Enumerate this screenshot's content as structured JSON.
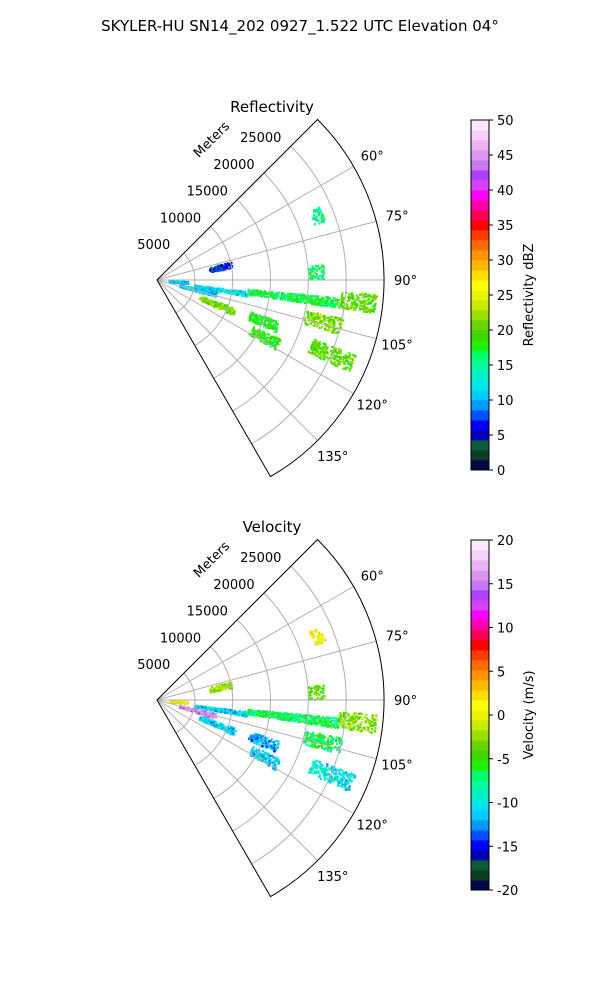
{
  "figure": {
    "title": "SKYLER-HU  SN14_202  0927_1.522 UTC Elevation 04°"
  },
  "chart_data": [
    {
      "type": "heatmap",
      "projection": "polar-sector",
      "title": "Reflectivity",
      "radial_label": "Meters",
      "theta_range_deg": [
        45,
        150
      ],
      "r_range": [
        0,
        30000
      ],
      "r_ticks": [
        5000,
        10000,
        15000,
        20000,
        25000
      ],
      "theta_ticks": [
        "60°",
        "75°",
        "90°",
        "105°",
        "120°",
        "135°"
      ],
      "grid": true,
      "colorbar": {
        "label": "Reflectivity dBZ",
        "min": 0,
        "max": 50,
        "ticks": [
          0,
          5,
          10,
          15,
          20,
          25,
          30,
          35,
          40,
          45,
          50
        ],
        "colors": [
          "#06084a",
          "#0a3f26",
          "#0b5a3c",
          "#0000b4",
          "#0000ff",
          "#0050ff",
          "#009bff",
          "#00ccff",
          "#00e6e6",
          "#00f2c8",
          "#00ff9c",
          "#00ff66",
          "#22f000",
          "#40d400",
          "#6ad400",
          "#9bde00",
          "#c8ec00",
          "#eaf500",
          "#ffff00",
          "#ffdd00",
          "#ffb800",
          "#ff9200",
          "#ff6a00",
          "#ff3c00",
          "#ff0000",
          "#ff0050",
          "#ff00aa",
          "#ff00ff",
          "#d640ff",
          "#b040ff",
          "#c878f0",
          "#dc96f0",
          "#eab4f5",
          "#f4d2fa",
          "#fbe8fc"
        ]
      },
      "echo_regions": [
        {
          "theta": 94,
          "r": [
            1500,
            4000
          ],
          "value": 10
        },
        {
          "theta": 98.5,
          "r": [
            5000,
            12000
          ],
          "value": 12
        },
        {
          "theta": 97,
          "r": [
            12000,
            24000
          ],
          "value": 17
        },
        {
          "theta": 96,
          "r": [
            24000,
            29000
          ],
          "value": 20
        },
        {
          "theta": 103,
          "r": [
            3000,
            8000
          ],
          "value": 11
        },
        {
          "theta": 112,
          "r": [
            6000,
            11000
          ],
          "value": 21
        },
        {
          "theta": 104,
          "r": [
            20000,
            25000
          ],
          "value": 21
        },
        {
          "theta": 111,
          "r": [
            13000,
            17000
          ],
          "value": 18
        },
        {
          "theta": 118,
          "r": [
            14000,
            18000
          ],
          "value": 18
        },
        {
          "theta": 113,
          "r": [
            22000,
            28000
          ],
          "value": 20
        },
        {
          "theta": 78,
          "r": [
            7000,
            10000
          ],
          "value": 6
        },
        {
          "theta": 87,
          "r": [
            20000,
            22000
          ],
          "value": 16
        },
        {
          "theta": 68,
          "r": [
            22000,
            23500
          ],
          "value": 15
        }
      ]
    },
    {
      "type": "heatmap",
      "projection": "polar-sector",
      "title": "Velocity",
      "radial_label": "Meters",
      "theta_range_deg": [
        45,
        150
      ],
      "r_range": [
        0,
        30000
      ],
      "r_ticks": [
        5000,
        10000,
        15000,
        20000,
        25000
      ],
      "theta_ticks": [
        "60°",
        "75°",
        "90°",
        "105°",
        "120°",
        "135°"
      ],
      "grid": true,
      "colorbar": {
        "label": "Velocity (m/s)",
        "min": -20,
        "max": 20,
        "ticks": [
          -20,
          -15,
          -10,
          -5,
          0,
          5,
          10,
          15,
          20
        ],
        "colors": [
          "#06084a",
          "#0a3f26",
          "#0b5a3c",
          "#0000b4",
          "#0000ff",
          "#0050ff",
          "#009bff",
          "#00ccff",
          "#00e6e6",
          "#00f2c8",
          "#00ff9c",
          "#00ff66",
          "#22f000",
          "#40d400",
          "#6ad400",
          "#9bde00",
          "#c8ec00",
          "#eaf500",
          "#ffff00",
          "#ffdd00",
          "#ffb800",
          "#ff9200",
          "#ff6a00",
          "#ff3c00",
          "#ff0000",
          "#ff0050",
          "#ff00aa",
          "#ff00ff",
          "#d640ff",
          "#b040ff",
          "#c878f0",
          "#dc96f0",
          "#eab4f5",
          "#f4d2fa",
          "#fbe8fc"
        ]
      },
      "echo_regions": [
        {
          "theta": 94,
          "r": [
            1500,
            4000
          ],
          "value": 1
        },
        {
          "theta": 98.5,
          "r": [
            5000,
            12000
          ],
          "value": -11
        },
        {
          "theta": 97,
          "r": [
            12000,
            24000
          ],
          "value": -7
        },
        {
          "theta": 96,
          "r": [
            24000,
            29000
          ],
          "value": -3
        },
        {
          "theta": 105,
          "r": [
            3000,
            8000
          ],
          "value": 15
        },
        {
          "theta": 112,
          "r": [
            6000,
            11000
          ],
          "value": -11
        },
        {
          "theta": 104,
          "r": [
            20000,
            25000
          ],
          "value": -7
        },
        {
          "theta": 111,
          "r": [
            13000,
            17000
          ],
          "value": -12
        },
        {
          "theta": 118,
          "r": [
            14000,
            18000
          ],
          "value": -11
        },
        {
          "theta": 113,
          "r": [
            22000,
            28000
          ],
          "value": -10
        },
        {
          "theta": 78,
          "r": [
            7000,
            10000
          ],
          "value": -2
        },
        {
          "theta": 87,
          "r": [
            20000,
            22000
          ],
          "value": -4
        },
        {
          "theta": 68,
          "r": [
            22000,
            23500
          ],
          "value": 1
        }
      ]
    }
  ]
}
